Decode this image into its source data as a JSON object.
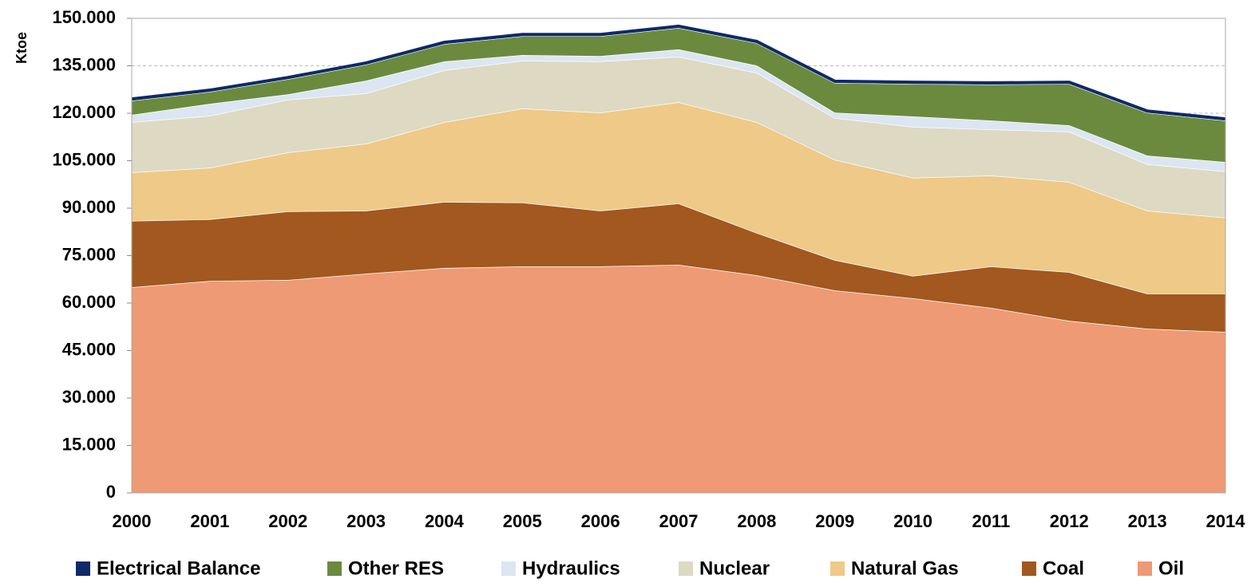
{
  "chart_data": {
    "type": "stacked-area",
    "y_label": "Ktoe",
    "categories": [
      "2000",
      "2001",
      "2002",
      "2003",
      "2004",
      "2005",
      "2006",
      "2007",
      "2008",
      "2009",
      "2010",
      "2011",
      "2012",
      "2013",
      "2014"
    ],
    "series": [
      {
        "name": "Electrical Balance",
        "color": "#0f2a66",
        "values": [
          0.5,
          0.5,
          0.5,
          0.5,
          0.5,
          0.5,
          0.5,
          0.5,
          0.5,
          0.5,
          0.5,
          0.5,
          0.5,
          0.5,
          0.5
        ]
      },
      {
        "name": "Other RES",
        "color": "#6b8a3e",
        "values": [
          4.5,
          3.8,
          4.8,
          5.1,
          5.5,
          6.0,
          6.3,
          6.8,
          7.1,
          9.4,
          10.3,
          11.4,
          13.1,
          13.6,
          13.1
        ]
      },
      {
        "name": "Hydraulics",
        "color": "#dce6f2",
        "values": [
          2.3,
          3.8,
          1.7,
          4.0,
          2.8,
          1.8,
          1.7,
          2.3,
          2.3,
          1.7,
          3.3,
          2.8,
          2.0,
          2.7,
          3.0
        ]
      },
      {
        "name": "Nuclear",
        "color": "#ddd9c3",
        "values": [
          15.9,
          16.4,
          16.7,
          15.9,
          16.4,
          15.1,
          16.2,
          14.4,
          15.6,
          13.2,
          16.1,
          14.6,
          15.9,
          14.7,
          14.6
        ]
      },
      {
        "name": "Natural Gas",
        "color": "#eec987",
        "values": [
          15.3,
          16.3,
          18.6,
          21.2,
          25.2,
          29.7,
          31.0,
          32.0,
          35.0,
          31.7,
          31.0,
          28.7,
          28.5,
          26.2,
          24.0
        ]
      },
      {
        "name": "Coal",
        "color": "#a2581f",
        "values": [
          21.0,
          19.5,
          21.7,
          19.9,
          20.9,
          20.2,
          17.6,
          19.4,
          13.4,
          9.6,
          7.1,
          13.1,
          15.4,
          11.1,
          12.1
        ]
      },
      {
        "name": "Oil",
        "color": "#ee9a74",
        "values": [
          65.0,
          67.0,
          67.3,
          69.3,
          71.1,
          71.6,
          71.6,
          72.1,
          68.8,
          64.0,
          61.5,
          58.5,
          54.4,
          51.9,
          50.9
        ]
      }
    ],
    "ylim": [
      0,
      150
    ],
    "yticks": [
      0,
      {
        "value": 15,
        "label": "15.000"
      },
      {
        "value": 30,
        "label": "30.000"
      },
      {
        "value": 45,
        "label": "45.000"
      },
      {
        "value": 60,
        "label": "60.000"
      },
      {
        "value": 75,
        "label": "75.000"
      },
      {
        "value": 90,
        "label": "90.000"
      },
      {
        "value": 105,
        "label": "105.000"
      },
      {
        "value": 120,
        "label": "120.000"
      },
      {
        "value": 135,
        "label": "135.000"
      },
      {
        "value": 150,
        "label": "150.000"
      }
    ],
    "grid": true,
    "legend": "bottom"
  }
}
